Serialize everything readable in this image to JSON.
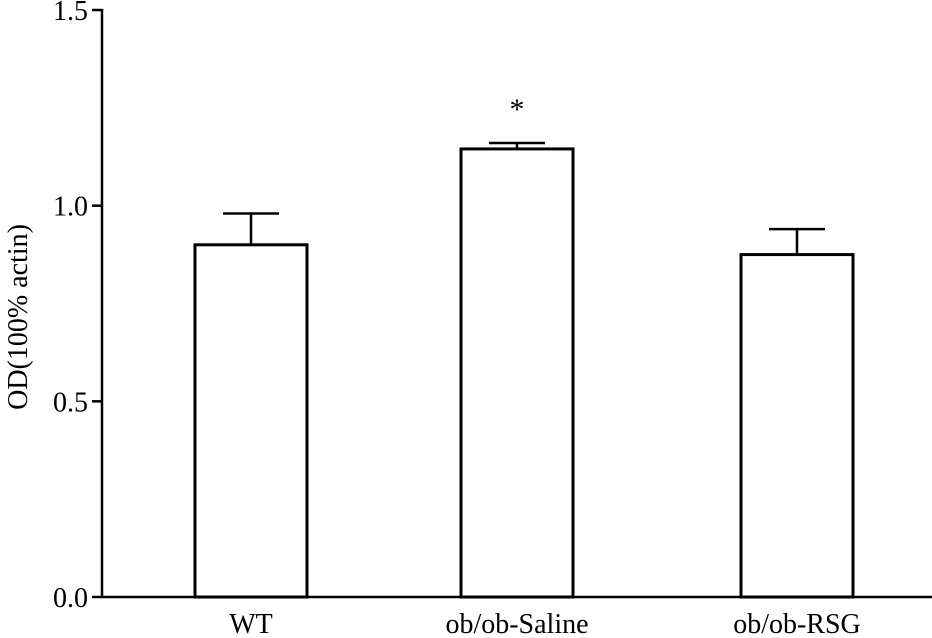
{
  "chart_data": {
    "type": "bar",
    "title": "",
    "xlabel": "",
    "ylabel": "OD(100% actin)",
    "ylim": [
      0,
      1.5
    ],
    "yticks": [
      "0.0",
      "0.5",
      "1.0",
      "1.5"
    ],
    "ytick_values": [
      0,
      0.5,
      1.0,
      1.5
    ],
    "categories": [
      "WT",
      "ob/ob-Saline",
      "ob/ob-RSG"
    ],
    "values": [
      0.9,
      1.145,
      0.875
    ],
    "errors": [
      0.08,
      0.015,
      0.065
    ],
    "annotations": [
      "",
      "*",
      ""
    ],
    "grid": false,
    "legend": "none"
  }
}
